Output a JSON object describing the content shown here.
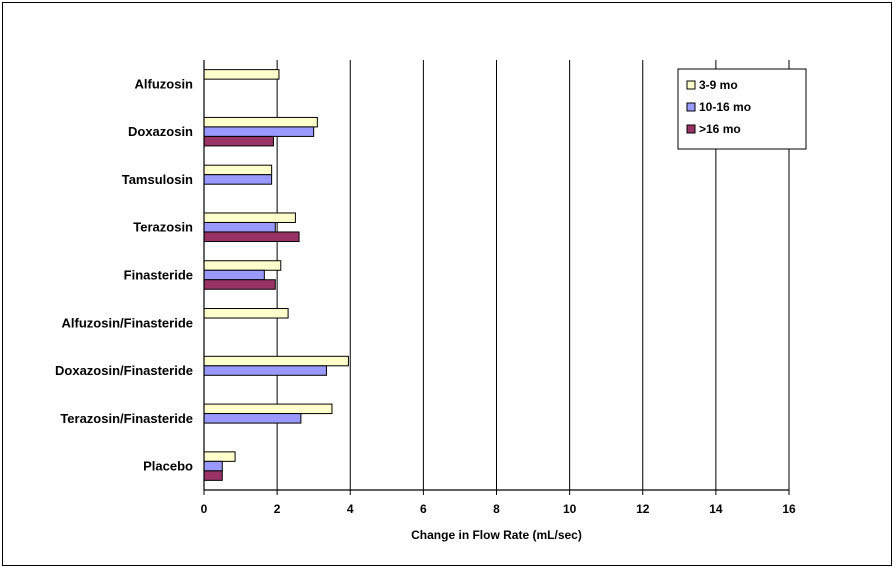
{
  "chart_data": {
    "type": "bar",
    "orientation": "horizontal",
    "title": "",
    "xlabel": "Change in Flow Rate (mL/sec)",
    "ylabel": "",
    "xlim": [
      0,
      16
    ],
    "xticks": [
      "0",
      "2",
      "4",
      "6",
      "8",
      "10",
      "12",
      "14",
      "16"
    ],
    "grid": true,
    "legend_position": "top-right",
    "categories": [
      "Alfuzosin",
      "Doxazosin",
      "Tamsulosin",
      "Terazosin",
      "Finasteride",
      "Alfuzosin/Finasteride",
      "Doxazosin/Finasteride",
      "Terazosin/Finasteride",
      "Placebo"
    ],
    "series": [
      {
        "name": "3-9 mo",
        "color": "#ffffcc",
        "values": [
          2.05,
          3.1,
          1.85,
          2.5,
          2.1,
          2.3,
          3.95,
          3.5,
          0.85
        ]
      },
      {
        "name": "10-16 mo",
        "color": "#9999ff",
        "values": [
          null,
          3.0,
          1.85,
          1.95,
          1.65,
          null,
          3.35,
          2.65,
          0.5
        ]
      },
      {
        "name": ">16 mo",
        "color": "#993366",
        "values": [
          null,
          1.9,
          null,
          2.6,
          1.95,
          null,
          null,
          null,
          0.5
        ]
      }
    ]
  }
}
